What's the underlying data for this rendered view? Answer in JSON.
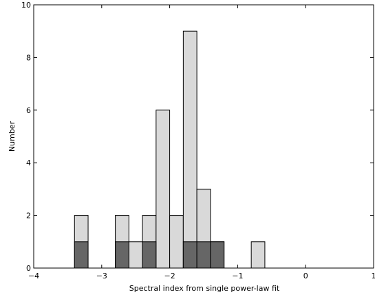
{
  "chart_data": {
    "type": "bar",
    "title": "",
    "xlabel": "Spectral index from single power-law fit",
    "ylabel": "Number",
    "xlim": [
      -4,
      1
    ],
    "ylim": [
      0,
      10
    ],
    "xticks": [
      -4,
      -3,
      -2,
      -1,
      0,
      1
    ],
    "xtick_labels": [
      "−4",
      "−3",
      "−2",
      "−1",
      "0",
      "1"
    ],
    "yticks": [
      0,
      2,
      4,
      6,
      8,
      10
    ],
    "ytick_labels": [
      "0",
      "2",
      "4",
      "6",
      "8",
      "10"
    ],
    "grid": false,
    "bin_width": 0.2,
    "series": [
      {
        "color": "#d9d9d9",
        "bins": [
          {
            "x0": -3.4,
            "count": 2
          },
          {
            "x0": -2.8,
            "count": 2
          },
          {
            "x0": -2.6,
            "count": 1
          },
          {
            "x0": -2.4,
            "count": 2
          },
          {
            "x0": -2.2,
            "count": 6
          },
          {
            "x0": -2.0,
            "count": 2
          },
          {
            "x0": -1.8,
            "count": 9
          },
          {
            "x0": -1.6,
            "count": 3
          },
          {
            "x0": -1.4,
            "count": 1
          },
          {
            "x0": -0.8,
            "count": 1
          }
        ]
      },
      {
        "color": "#666666",
        "bins": [
          {
            "x0": -3.4,
            "count": 1
          },
          {
            "x0": -2.8,
            "count": 1
          },
          {
            "x0": -2.4,
            "count": 1
          },
          {
            "x0": -1.8,
            "count": 1
          },
          {
            "x0": -1.6,
            "count": 1
          },
          {
            "x0": -1.4,
            "count": 1
          }
        ]
      }
    ]
  }
}
